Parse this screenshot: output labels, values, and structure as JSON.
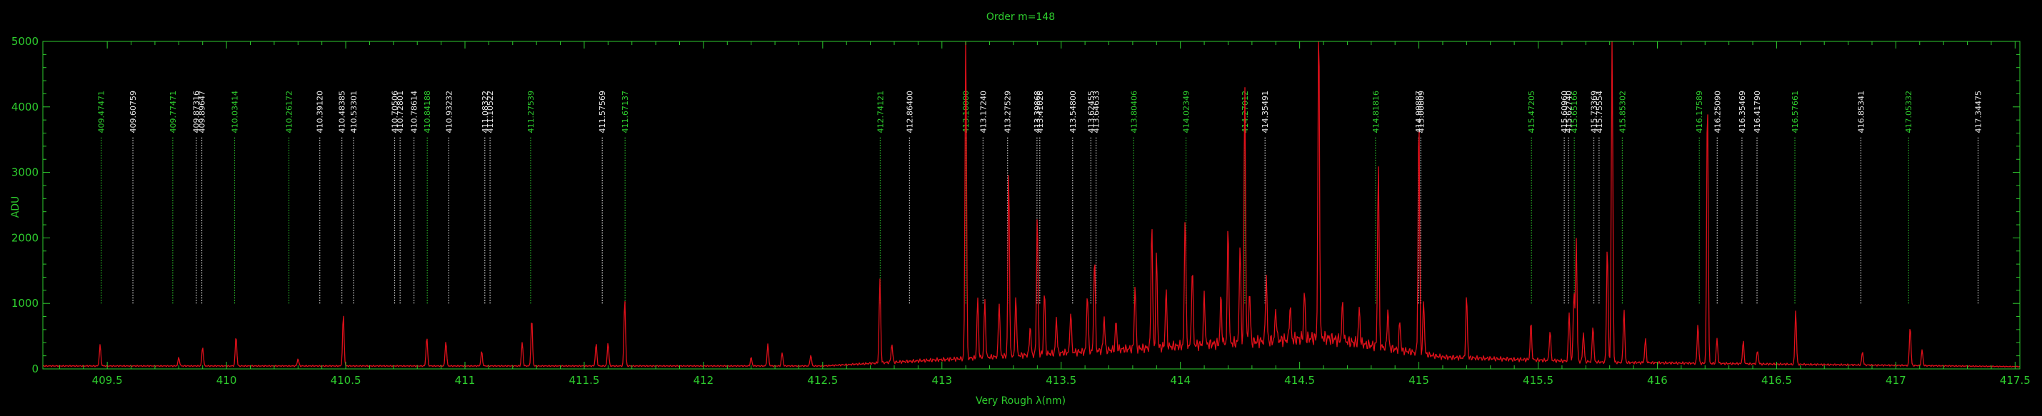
{
  "chart_data": {
    "type": "line",
    "title": "Order m=148",
    "xlabel": "Very Rough λ(nm)",
    "ylabel": "ADU",
    "xlim": [
      409.23,
      417.52
    ],
    "ylim": [
      0,
      5000
    ],
    "x_ticks": [
      "409.5",
      "410",
      "410.5",
      "411",
      "411.5",
      "412",
      "412.5",
      "413",
      "413.5",
      "414",
      "414.5",
      "415",
      "415.5",
      "416",
      "416.5",
      "417",
      "417.5"
    ],
    "y_ticks": [
      "0",
      "1000",
      "2000",
      "3000",
      "4000",
      "5000"
    ],
    "colors": {
      "axes": "#2ecc2e",
      "spectrum": "#e0101a",
      "line_white": "#e8e8e8",
      "line_green": "#2ecc2e",
      "background": "#000000"
    },
    "grid": false,
    "series": [
      {
        "name": "",
        "color": "#e0101a",
        "peaks": [
          [
            409.47,
            320
          ],
          [
            409.8,
            130
          ],
          [
            409.9,
            290
          ],
          [
            410.04,
            460
          ],
          [
            410.3,
            110
          ],
          [
            410.49,
            780
          ],
          [
            410.84,
            440
          ],
          [
            410.92,
            380
          ],
          [
            411.07,
            220
          ],
          [
            411.24,
            360
          ],
          [
            411.28,
            720
          ],
          [
            411.55,
            340
          ],
          [
            411.6,
            360
          ],
          [
            411.67,
            1020
          ],
          [
            412.2,
            130
          ],
          [
            412.27,
            330
          ],
          [
            412.33,
            200
          ],
          [
            412.45,
            170
          ],
          [
            412.74,
            1280
          ],
          [
            412.79,
            280
          ],
          [
            413.1,
            5000
          ],
          [
            413.15,
            900
          ],
          [
            413.18,
            860
          ],
          [
            413.24,
            840
          ],
          [
            413.28,
            2820
          ],
          [
            413.31,
            920
          ],
          [
            413.37,
            440
          ],
          [
            413.4,
            2160
          ],
          [
            413.43,
            960
          ],
          [
            413.48,
            540
          ],
          [
            413.54,
            640
          ],
          [
            413.61,
            900
          ],
          [
            413.64,
            1460
          ],
          [
            413.68,
            520
          ],
          [
            413.73,
            440
          ],
          [
            413.81,
            980
          ],
          [
            413.88,
            1900
          ],
          [
            413.9,
            1420
          ],
          [
            413.94,
            880
          ],
          [
            414.02,
            2050
          ],
          [
            414.05,
            1200
          ],
          [
            414.1,
            780
          ],
          [
            414.17,
            720
          ],
          [
            414.2,
            1800
          ],
          [
            414.25,
            1480
          ],
          [
            414.27,
            3880
          ],
          [
            414.29,
            780
          ],
          [
            414.36,
            1020
          ],
          [
            414.4,
            480
          ],
          [
            414.46,
            520
          ],
          [
            414.52,
            720
          ],
          [
            414.58,
            5000
          ],
          [
            414.68,
            560
          ],
          [
            414.75,
            540
          ],
          [
            414.83,
            2800
          ],
          [
            414.87,
            600
          ],
          [
            414.92,
            440
          ],
          [
            415.0,
            3640
          ],
          [
            415.02,
            820
          ],
          [
            415.2,
            940
          ],
          [
            415.47,
            560
          ],
          [
            415.55,
            460
          ],
          [
            415.63,
            760
          ],
          [
            415.65,
            1040
          ],
          [
            415.66,
            1880
          ],
          [
            415.69,
            440
          ],
          [
            415.73,
            560
          ],
          [
            415.79,
            1780
          ],
          [
            415.81,
            5000
          ],
          [
            415.86,
            820
          ],
          [
            415.95,
            360
          ],
          [
            416.17,
            600
          ],
          [
            416.21,
            4100
          ],
          [
            416.25,
            380
          ],
          [
            416.36,
            340
          ],
          [
            416.42,
            200
          ],
          [
            416.58,
            820
          ],
          [
            416.86,
            200
          ],
          [
            417.06,
            600
          ],
          [
            417.11,
            240
          ]
        ]
      }
    ],
    "line_ids": [
      {
        "x": 409.47471,
        "label": "409.47471",
        "color": "green"
      },
      {
        "x": 409.60759,
        "label": "409.60759",
        "color": "white"
      },
      {
        "x": 409.77471,
        "label": "409.77471",
        "color": "green"
      },
      {
        "x": 409.87316,
        "label": "409.87316",
        "color": "white"
      },
      {
        "x": 409.89647,
        "label": "409.89647",
        "color": "white"
      },
      {
        "x": 410.03414,
        "label": "410.03414",
        "color": "green"
      },
      {
        "x": 410.26172,
        "label": "410.26172",
        "color": "green"
      },
      {
        "x": 410.3912,
        "label": "410.39120",
        "color": "white"
      },
      {
        "x": 410.48385,
        "label": "410.48385",
        "color": "white"
      },
      {
        "x": 410.53301,
        "label": "410.53301",
        "color": "white"
      },
      {
        "x": 410.70506,
        "label": "410.70506",
        "color": "white"
      },
      {
        "x": 410.72801,
        "label": "410.72801",
        "color": "white"
      },
      {
        "x": 410.78614,
        "label": "410.78614",
        "color": "white"
      },
      {
        "x": 410.84188,
        "label": "410.84188",
        "color": "green"
      },
      {
        "x": 410.93232,
        "label": "410.93232",
        "color": "white"
      },
      {
        "x": 411.08322,
        "label": "411.08322",
        "color": "white"
      },
      {
        "x": 411.10522,
        "label": "411.10522",
        "color": "white"
      },
      {
        "x": 411.27539,
        "label": "411.27539",
        "color": "green"
      },
      {
        "x": 411.57569,
        "label": "411.57569",
        "color": "white"
      },
      {
        "x": 411.67137,
        "label": "411.67137",
        "color": "green"
      },
      {
        "x": 412.74121,
        "label": "412.74121",
        "color": "green"
      },
      {
        "x": 412.864,
        "label": "412.86400",
        "color": "white"
      },
      {
        "x": 413.1,
        "label": "413.10000",
        "color": "green"
      },
      {
        "x": 413.1724,
        "label": "413.17240",
        "color": "white"
      },
      {
        "x": 413.27529,
        "label": "413.27529",
        "color": "white"
      },
      {
        "x": 413.39868,
        "label": "413.39868",
        "color": "white"
      },
      {
        "x": 413.41026,
        "label": "413.41026",
        "color": "white"
      },
      {
        "x": 413.548,
        "label": "413.54800",
        "color": "white"
      },
      {
        "x": 413.62455,
        "label": "413.62455",
        "color": "white"
      },
      {
        "x": 413.64633,
        "label": "413.64633",
        "color": "white"
      },
      {
        "x": 413.80406,
        "label": "413.80406",
        "color": "green"
      },
      {
        "x": 414.02349,
        "label": "414.02349",
        "color": "green"
      },
      {
        "x": 414.27012,
        "label": "414.27012",
        "color": "green"
      },
      {
        "x": 414.35491,
        "label": "414.35491",
        "color": "white"
      },
      {
        "x": 414.81816,
        "label": "414.81816",
        "color": "green"
      },
      {
        "x": 414.99887,
        "label": "414.99887",
        "color": "white"
      },
      {
        "x": 415.00809,
        "label": "415.00809",
        "color": "white"
      },
      {
        "x": 415.47205,
        "label": "415.47205",
        "color": "green"
      },
      {
        "x": 415.6096,
        "label": "415.60960",
        "color": "white"
      },
      {
        "x": 415.6274,
        "label": "415.62740",
        "color": "white"
      },
      {
        "x": 415.65166,
        "label": "415.65166",
        "color": "green"
      },
      {
        "x": 415.73369,
        "label": "415.73369",
        "color": "white"
      },
      {
        "x": 415.75554,
        "label": "415.75554",
        "color": "white"
      },
      {
        "x": 415.85302,
        "label": "415.85302",
        "color": "green"
      },
      {
        "x": 416.17589,
        "label": "416.17589",
        "color": "green"
      },
      {
        "x": 416.2509,
        "label": "416.25090",
        "color": "white"
      },
      {
        "x": 416.35469,
        "label": "416.35469",
        "color": "white"
      },
      {
        "x": 416.4179,
        "label": "416.41790",
        "color": "white"
      },
      {
        "x": 416.57661,
        "label": "416.57661",
        "color": "green"
      },
      {
        "x": 416.85341,
        "label": "416.85341",
        "color": "white"
      },
      {
        "x": 417.05332,
        "label": "417.05332",
        "color": "green"
      },
      {
        "x": 417.34475,
        "label": "417.34475",
        "color": "white"
      }
    ]
  }
}
